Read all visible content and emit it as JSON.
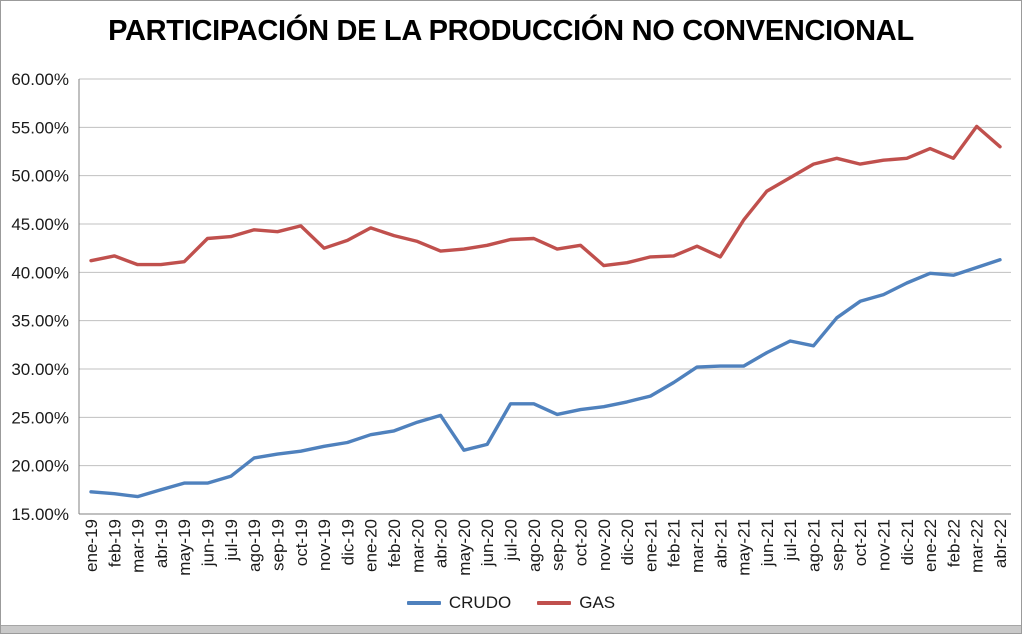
{
  "chart_data": {
    "type": "line",
    "title": "PARTICIPACIÓN DE LA PRODUCCIÓN NO CONVENCIONAL",
    "categories": [
      "ene-19",
      "feb-19",
      "mar-19",
      "abr-19",
      "may-19",
      "jun-19",
      "jul-19",
      "ago-19",
      "sep-19",
      "oct-19",
      "nov-19",
      "dic-19",
      "ene-20",
      "feb-20",
      "mar-20",
      "abr-20",
      "may-20",
      "jun-20",
      "jul-20",
      "ago-20",
      "sep-20",
      "oct-20",
      "nov-20",
      "dic-20",
      "ene-21",
      "feb-21",
      "mar-21",
      "abr-21",
      "may-21",
      "jun-21",
      "jul-21",
      "ago-21",
      "sep-21",
      "oct-21",
      "nov-21",
      "dic-21",
      "ene-22",
      "feb-22",
      "mar-22",
      "abr-22"
    ],
    "series": [
      {
        "name": "CRUDO",
        "color": "#4F81BD",
        "values": [
          17.3,
          17.1,
          16.8,
          17.5,
          18.2,
          18.2,
          18.9,
          20.8,
          21.2,
          21.5,
          22.0,
          22.4,
          23.2,
          23.6,
          24.5,
          25.2,
          21.6,
          22.2,
          26.4,
          26.4,
          25.3,
          25.8,
          26.1,
          26.6,
          27.2,
          28.6,
          30.2,
          30.3,
          30.3,
          31.7,
          32.9,
          32.4,
          35.3,
          37.0,
          37.7,
          38.9,
          39.9,
          39.7,
          40.5,
          41.3
        ]
      },
      {
        "name": "GAS",
        "color": "#C0504D",
        "values": [
          41.2,
          41.7,
          40.8,
          40.8,
          41.1,
          43.5,
          43.7,
          44.4,
          44.2,
          44.8,
          42.5,
          43.3,
          44.6,
          43.8,
          43.2,
          42.2,
          42.4,
          42.8,
          43.4,
          43.5,
          42.4,
          42.8,
          40.7,
          41.0,
          41.6,
          41.7,
          42.7,
          41.6,
          45.4,
          48.4,
          49.8,
          51.2,
          51.8,
          51.2,
          51.6,
          51.8,
          52.8,
          51.8,
          55.1,
          53.0
        ]
      }
    ],
    "ylim": [
      15,
      60
    ],
    "ytick_step": 5,
    "ytick_labels": [
      "60.00%",
      "55.00%",
      "50.00%",
      "45.00%",
      "40.00%",
      "35.00%",
      "30.00%",
      "25.00%",
      "20.00%",
      "15.00%"
    ],
    "grid": true,
    "legend_position": "bottom",
    "grid_color": "#C0C0C0",
    "axis_color": "#808080"
  }
}
